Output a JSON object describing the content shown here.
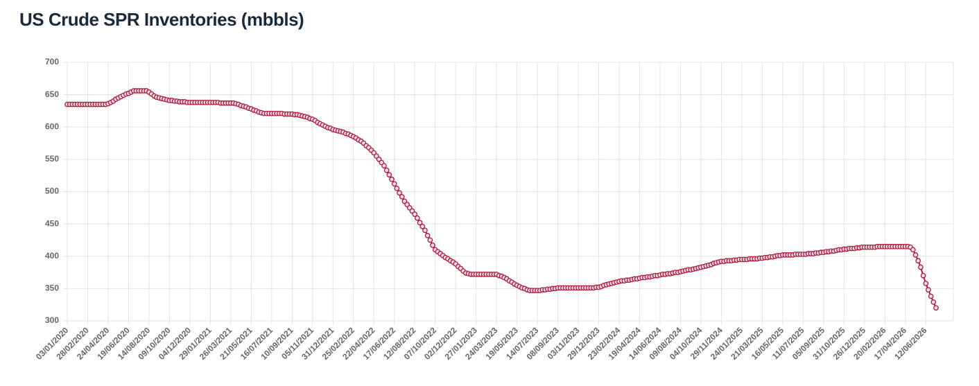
{
  "chart_data": {
    "type": "line",
    "title": "US Crude SPR Inventories (mbbls)",
    "categories": [
      "03/01/2020",
      null,
      null,
      null,
      null,
      null,
      null,
      null,
      "28/02/2020",
      null,
      null,
      null,
      null,
      null,
      null,
      null,
      "24/04/2020",
      null,
      null,
      null,
      null,
      null,
      null,
      null,
      "19/06/2020",
      null,
      null,
      null,
      null,
      null,
      null,
      null,
      "14/08/2020",
      null,
      null,
      null,
      null,
      null,
      null,
      null,
      "09/10/2020",
      null,
      null,
      null,
      null,
      null,
      null,
      null,
      "04/12/2020",
      null,
      null,
      null,
      null,
      null,
      null,
      null,
      "29/01/2021",
      null,
      null,
      null,
      null,
      null,
      null,
      null,
      "26/03/2021",
      null,
      null,
      null,
      null,
      null,
      null,
      null,
      "21/05/2021",
      null,
      null,
      null,
      null,
      null,
      null,
      null,
      "16/07/2021",
      null,
      null,
      null,
      null,
      null,
      null,
      null,
      "10/09/2021",
      null,
      null,
      null,
      null,
      null,
      null,
      null,
      "05/11/2021",
      null,
      null,
      null,
      null,
      null,
      null,
      null,
      "31/12/2021",
      null,
      null,
      null,
      null,
      null,
      null,
      null,
      "25/02/2022",
      null,
      null,
      null,
      null,
      null,
      null,
      null,
      "22/04/2022",
      null,
      null,
      null,
      null,
      null,
      null,
      null,
      "17/06/2022",
      null,
      null,
      null,
      null,
      null,
      null,
      null,
      "12/08/2022",
      null,
      null,
      null,
      null,
      null,
      null,
      null,
      "07/10/2022",
      null,
      null,
      null,
      null,
      null,
      null,
      null,
      "02/12/2022",
      null,
      null,
      null,
      null,
      null,
      null,
      null,
      "27/01/2023",
      null,
      null,
      null,
      null,
      null,
      null,
      null,
      "24/03/2023",
      null,
      null,
      null,
      null,
      null,
      null,
      null,
      "19/05/2023",
      null,
      null,
      null,
      null,
      null,
      null,
      null,
      "14/07/2023",
      null,
      null,
      null,
      null,
      null,
      null,
      null,
      "08/09/2023",
      null,
      null,
      null,
      null,
      null,
      null,
      null,
      "03/11/2023",
      null,
      null,
      null,
      null,
      null,
      null,
      null,
      "29/12/2023",
      null,
      null,
      null,
      null,
      null,
      null,
      null,
      "23/02/2024",
      null,
      null,
      null,
      null,
      null,
      null,
      null,
      "19/04/2024",
      null,
      null,
      null,
      null,
      null,
      null,
      null,
      "14/06/2024",
      null,
      null,
      null,
      null,
      null,
      null,
      null,
      "09/08/2024",
      null,
      null,
      null,
      null,
      null,
      null,
      null,
      "04/10/2024",
      null,
      null,
      null,
      null,
      null,
      null,
      null,
      "29/11/2024",
      null,
      null,
      null,
      null,
      null,
      null,
      null,
      "24/01/2025",
      null,
      null,
      null,
      null,
      null,
      null,
      null,
      "21/03/2025",
      null,
      null,
      null,
      null,
      null,
      null,
      null,
      "16/05/2025",
      null,
      null,
      null,
      null,
      null,
      null,
      null,
      "11/07/2025",
      null,
      null,
      null,
      null,
      null,
      null,
      null,
      "05/09/2025",
      null,
      null,
      null,
      null,
      null,
      null,
      null,
      "31/10/2025",
      null,
      null,
      null,
      null,
      null,
      null,
      null,
      "26/12/2025",
      null,
      null,
      null,
      null,
      null,
      null,
      null,
      "20/02/2026",
      null,
      null,
      null,
      null,
      null,
      null,
      null,
      "17/04/2026",
      null,
      null,
      null,
      null,
      null,
      null,
      null,
      "12/06/2026",
      null,
      null,
      null,
      null
    ],
    "values": [
      635,
      635,
      635,
      635,
      635,
      635,
      635,
      635,
      635,
      635,
      635,
      635,
      635,
      635,
      635,
      635,
      636,
      638,
      640,
      643,
      645,
      647,
      649,
      651,
      652,
      654,
      656,
      656,
      656,
      656,
      656,
      656,
      654,
      651,
      648,
      646,
      645,
      644,
      643,
      642,
      641,
      641,
      640,
      640,
      639,
      639,
      639,
      638,
      638,
      638,
      638,
      638,
      638,
      638,
      638,
      638,
      638,
      638,
      638,
      638,
      637,
      637,
      637,
      637,
      637,
      637,
      636,
      635,
      633,
      632,
      631,
      629,
      628,
      626,
      625,
      623,
      622,
      621,
      621,
      621,
      621,
      621,
      621,
      621,
      621,
      620,
      620,
      620,
      620,
      619,
      619,
      618,
      617,
      616,
      615,
      613,
      612,
      610,
      607,
      605,
      603,
      601,
      599,
      598,
      596,
      595,
      594,
      593,
      592,
      590,
      589,
      587,
      585,
      583,
      580,
      578,
      575,
      571,
      568,
      564,
      560,
      555,
      550,
      545,
      540,
      533,
      526,
      519,
      512,
      505,
      498,
      492,
      485,
      480,
      475,
      470,
      465,
      459,
      452,
      446,
      440,
      432,
      425,
      417,
      410,
      407,
      404,
      401,
      398,
      396,
      393,
      391,
      388,
      384,
      381,
      377,
      374,
      373,
      372,
      372,
      372,
      372,
      372,
      372,
      372,
      372,
      372,
      372,
      372,
      370,
      369,
      367,
      365,
      362,
      360,
      357,
      355,
      353,
      351,
      350,
      348,
      347,
      347,
      347,
      347,
      347,
      348,
      348,
      349,
      349,
      350,
      350,
      351,
      351,
      351,
      351,
      351,
      351,
      351,
      351,
      351,
      351,
      351,
      351,
      351,
      351,
      351,
      352,
      352,
      353,
      355,
      356,
      357,
      358,
      359,
      360,
      361,
      362,
      362,
      363,
      363,
      364,
      365,
      365,
      366,
      367,
      367,
      368,
      368,
      369,
      370,
      370,
      371,
      372,
      372,
      373,
      373,
      374,
      375,
      375,
      376,
      377,
      378,
      379,
      379,
      380,
      381,
      382,
      383,
      384,
      385,
      386,
      387,
      389,
      390,
      391,
      392,
      392,
      393,
      393,
      393,
      394,
      394,
      395,
      395,
      395,
      395,
      396,
      396,
      396,
      396,
      397,
      397,
      398,
      398,
      399,
      399,
      400,
      401,
      401,
      402,
      402,
      402,
      402,
      402,
      403,
      403,
      403,
      403,
      403,
      404,
      404,
      404,
      405,
      405,
      406,
      406,
      407,
      407,
      408,
      408,
      409,
      410,
      410,
      411,
      411,
      412,
      412,
      412,
      413,
      413,
      414,
      414,
      414,
      414,
      414,
      414,
      415,
      415,
      415,
      415,
      415,
      415,
      415,
      415,
      415,
      415,
      415,
      415,
      415,
      414,
      410,
      402,
      393,
      383,
      370,
      358,
      348,
      338,
      329,
      320
    ],
    "color": "#a8193d",
    "ylim": [
      300,
      700
    ],
    "yticks": [
      300,
      350,
      400,
      450,
      500,
      550,
      600,
      650,
      700
    ],
    "grid": true
  }
}
